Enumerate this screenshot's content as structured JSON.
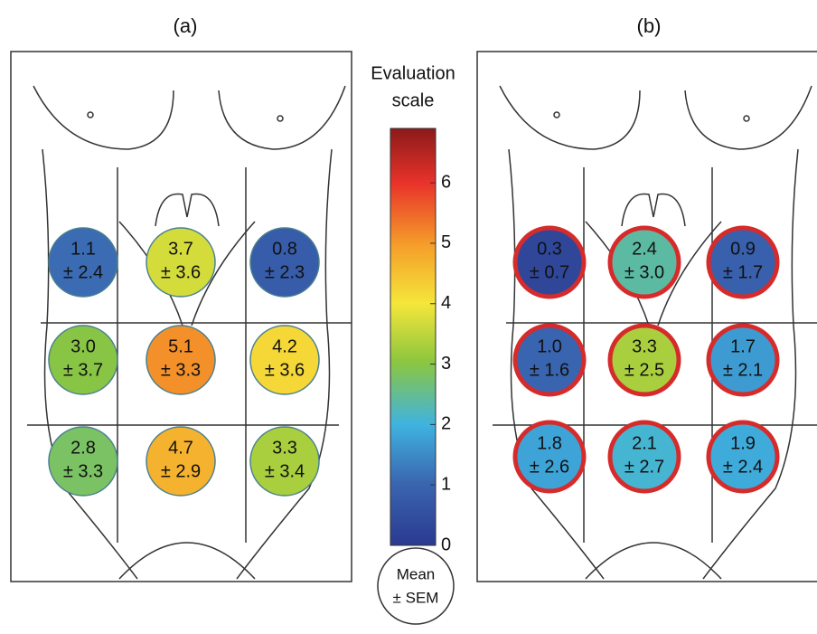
{
  "panels": [
    {
      "label": "(a)",
      "spots": [
        {
          "mean": "1.1",
          "sem": "± 2.4"
        },
        {
          "mean": "3.7",
          "sem": "± 3.6"
        },
        {
          "mean": "0.8",
          "sem": "± 2.3"
        },
        {
          "mean": "3.0",
          "sem": "± 3.7"
        },
        {
          "mean": "5.1",
          "sem": "± 3.3"
        },
        {
          "mean": "4.2",
          "sem": "± 3.6"
        },
        {
          "mean": "2.8",
          "sem": "± 3.3"
        },
        {
          "mean": "4.7",
          "sem": "± 2.9"
        },
        {
          "mean": "3.3",
          "sem": "± 3.4"
        }
      ]
    },
    {
      "label": "(b)",
      "spots": [
        {
          "mean": "0.3",
          "sem": "± 0.7"
        },
        {
          "mean": "2.4",
          "sem": "± 3.0"
        },
        {
          "mean": "0.9",
          "sem": "± 1.7"
        },
        {
          "mean": "1.0",
          "sem": "± 1.6"
        },
        {
          "mean": "3.3",
          "sem": "± 2.5"
        },
        {
          "mean": "1.7",
          "sem": "± 2.1"
        },
        {
          "mean": "1.8",
          "sem": "± 2.6"
        },
        {
          "mean": "2.1",
          "sem": "± 2.7"
        },
        {
          "mean": "1.9",
          "sem": "± 2.4"
        }
      ]
    }
  ],
  "colorbar": {
    "title": [
      "Evaluation",
      "scale"
    ],
    "ticks": [
      0,
      1,
      2,
      3,
      4,
      5,
      6
    ],
    "range": [
      0,
      6.9
    ]
  },
  "legend": {
    "lines": [
      "Mean",
      "± SEM"
    ]
  }
}
